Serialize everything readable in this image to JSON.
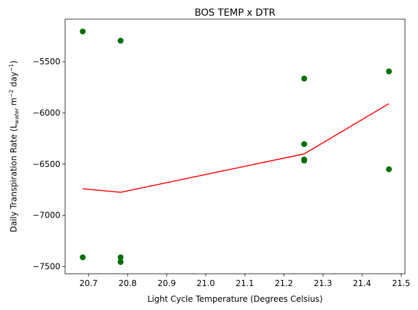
{
  "chart_data": {
    "type": "scatter",
    "title": "BOS TEMP x DTR",
    "xlabel": "Light Cycle Temperature (Degrees Celsius)",
    "ylabel": "Daily Transpiration Rate (L_water m^-2 day^-1)",
    "ylabel_parts": {
      "prefix": "Daily Transpiration Rate (L",
      "sub": "water",
      "mid1": " m",
      "sup1": "−2",
      "mid2": " day",
      "sup2": "−1",
      "suffix": ")"
    },
    "xlim": [
      20.64,
      21.51
    ],
    "ylim": [
      -7570,
      -5085
    ],
    "grid": false,
    "x_ticks": [
      20.7,
      20.8,
      20.9,
      21.0,
      21.1,
      21.2,
      21.3,
      21.4,
      21.5
    ],
    "x_tick_labels": [
      "20.7",
      "20.8",
      "20.9",
      "21.0",
      "21.1",
      "21.2",
      "21.3",
      "21.4",
      "21.5"
    ],
    "y_ticks": [
      -7500,
      -7000,
      -6500,
      -6000,
      -5500
    ],
    "y_tick_labels": [
      "−7500",
      "−7000",
      "−6500",
      "−6000",
      "−5500"
    ],
    "series": [
      {
        "kind": "points",
        "color": "#007000",
        "points": [
          {
            "x": 20.685,
            "y": -5205
          },
          {
            "x": 20.685,
            "y": -7410
          },
          {
            "x": 20.782,
            "y": -5295
          },
          {
            "x": 20.782,
            "y": -7410
          },
          {
            "x": 20.782,
            "y": -7455
          },
          {
            "x": 21.252,
            "y": -5665
          },
          {
            "x": 21.252,
            "y": -6305
          },
          {
            "x": 21.252,
            "y": -6455
          },
          {
            "x": 21.252,
            "y": -6465
          },
          {
            "x": 21.469,
            "y": -5595
          },
          {
            "x": 21.469,
            "y": -6550
          }
        ]
      },
      {
        "kind": "line",
        "color": "#ff0000",
        "points": [
          {
            "x": 20.685,
            "y": -6740
          },
          {
            "x": 20.782,
            "y": -6775
          },
          {
            "x": 21.252,
            "y": -6400
          },
          {
            "x": 21.469,
            "y": -5910
          }
        ]
      }
    ]
  }
}
